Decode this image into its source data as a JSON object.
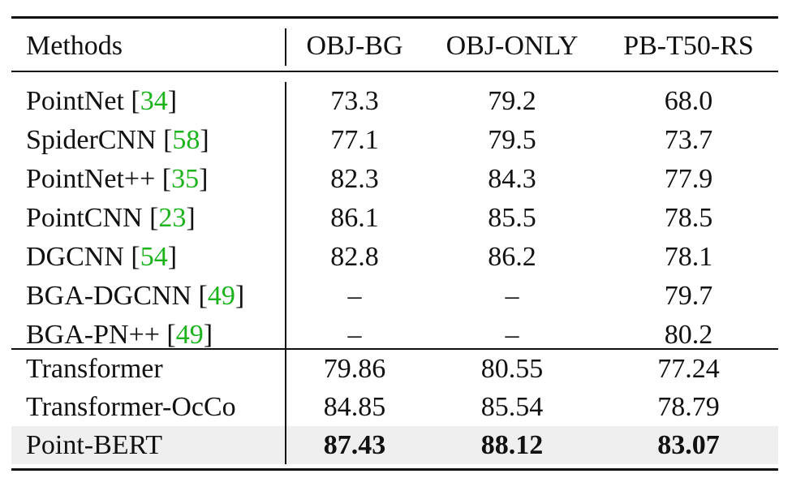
{
  "table": {
    "headers": [
      "Methods",
      "OBJ-BG",
      "OBJ-ONLY",
      "PB-T50-RS"
    ],
    "groups": [
      {
        "rows": [
          {
            "method": "PointNet",
            "cite": "34",
            "values": [
              "73.3",
              "79.2",
              "68.0"
            ]
          },
          {
            "method": "SpiderCNN",
            "cite": "58",
            "values": [
              "77.1",
              "79.5",
              "73.7"
            ]
          },
          {
            "method": "PointNet++",
            "cite": "35",
            "values": [
              "82.3",
              "84.3",
              "77.9"
            ]
          },
          {
            "method": "PointCNN",
            "cite": "23",
            "values": [
              "86.1",
              "85.5",
              "78.5"
            ]
          },
          {
            "method": "DGCNN",
            "cite": "54",
            "values": [
              "82.8",
              "86.2",
              "78.1"
            ]
          },
          {
            "method": "BGA-DGCNN",
            "cite": "49",
            "values": [
              "–",
              "–",
              "79.7"
            ]
          },
          {
            "method": "BGA-PN++",
            "cite": "49",
            "values": [
              "–",
              "–",
              "80.2"
            ]
          }
        ]
      },
      {
        "rows": [
          {
            "method": "Transformer",
            "values": [
              "79.86",
              "80.55",
              "77.24"
            ]
          },
          {
            "method": "Transformer-OcCo",
            "values": [
              "84.85",
              "85.54",
              "78.79"
            ]
          },
          {
            "method": "Point-BERT",
            "values": [
              "87.43",
              "88.12",
              "83.07"
            ],
            "bold": true,
            "highlight": true
          }
        ]
      }
    ],
    "colors": {
      "citation": "#1db31d",
      "highlight_row": "#efefef"
    }
  }
}
